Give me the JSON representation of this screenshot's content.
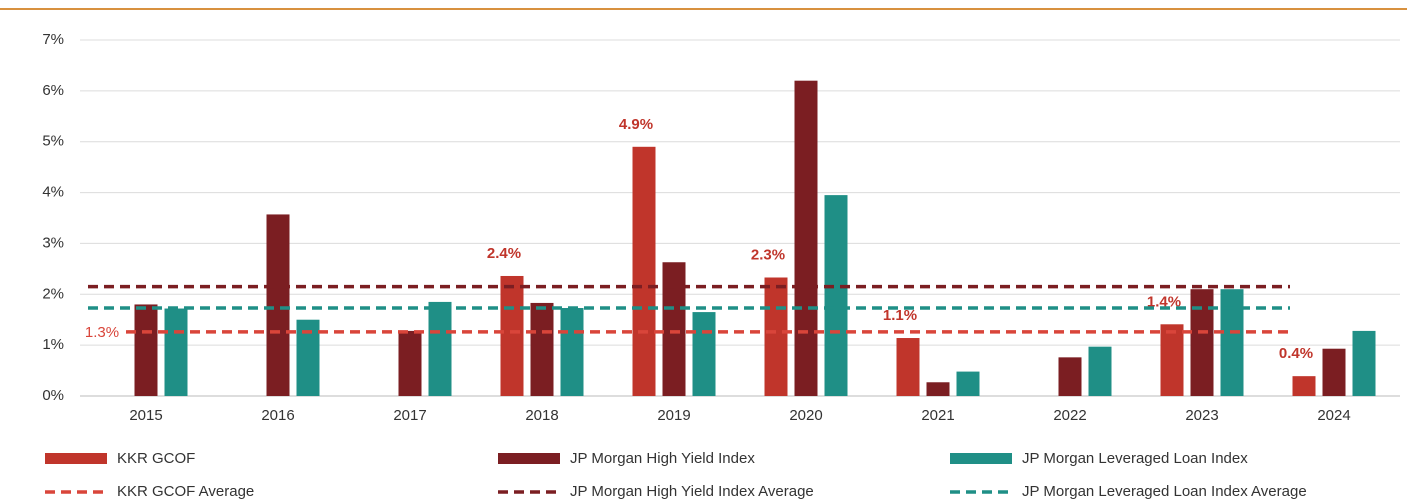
{
  "chart_data": {
    "type": "bar",
    "categories": [
      "2015",
      "2016",
      "2017",
      "2018",
      "2019",
      "2020",
      "2021",
      "2022",
      "2023",
      "2024"
    ],
    "series": [
      {
        "name": "KKR GCOF",
        "color": "#c0352b",
        "values": [
          null,
          null,
          null,
          2.36,
          4.9,
          2.33,
          1.14,
          null,
          1.41,
          0.39
        ],
        "value_labels": [
          null,
          null,
          null,
          "2.4%",
          "4.9%",
          "2.3%",
          "1.1%",
          null,
          "1.4%",
          "0.4%"
        ]
      },
      {
        "name": "JP Morgan High Yield Index",
        "color": "#7b1e22",
        "values": [
          1.8,
          3.57,
          1.28,
          1.83,
          2.63,
          6.2,
          0.27,
          0.76,
          2.1,
          0.93
        ]
      },
      {
        "name": "JP Morgan Leveraged Loan Index",
        "color": "#1f8f86",
        "values": [
          1.72,
          1.5,
          1.85,
          1.73,
          1.65,
          3.95,
          0.48,
          0.97,
          2.1,
          1.28
        ]
      }
    ],
    "reference_lines": [
      {
        "name": "KKR GCOF Average",
        "color": "#d9453a",
        "value": 1.26,
        "value_label": "1.3%"
      },
      {
        "name": "JP Morgan High Yield Index Average",
        "color": "#7b1e22",
        "value": 2.15
      },
      {
        "name": "JP Morgan Leveraged Loan Index Average",
        "color": "#1f8f86",
        "value": 1.73
      }
    ],
    "ylim": [
      0,
      7
    ],
    "yticks": [
      {
        "value": 0,
        "label": "0%"
      },
      {
        "value": 1,
        "label": "1%"
      },
      {
        "value": 2,
        "label": "2%"
      },
      {
        "value": 3,
        "label": "3%"
      },
      {
        "value": 4,
        "label": "4%"
      },
      {
        "value": 5,
        "label": "5%"
      },
      {
        "value": 6,
        "label": "6%"
      },
      {
        "value": 7,
        "label": "7%"
      }
    ],
    "grid": true
  }
}
